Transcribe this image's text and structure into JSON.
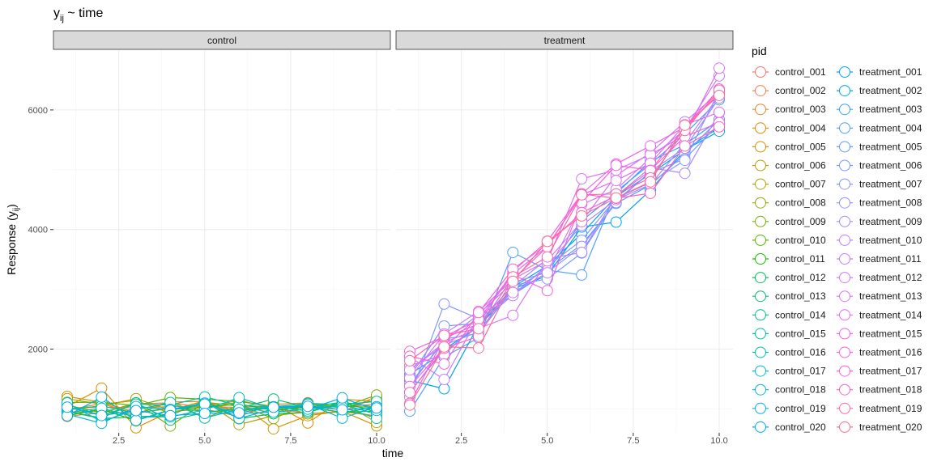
{
  "chart_data": {
    "type": "line",
    "title": "y",
    "title_subscript": "ij",
    "title_suffix": " ~ time",
    "xlabel": "time",
    "ylabel": "Response (y",
    "ylabel_subscript": "ij",
    "ylabel_suffix": ")",
    "xlim": [
      0.6,
      10.4
    ],
    "ylim": [
      600,
      7000
    ],
    "x_ticks": [
      2.5,
      5.0,
      7.5,
      10.0
    ],
    "x_tick_labels": [
      "2.5",
      "5.0",
      "7.5",
      "10.0"
    ],
    "y_ticks": [
      2000,
      4000,
      6000
    ],
    "y_tick_labels": [
      "2000",
      "4000",
      "6000"
    ],
    "grid": true,
    "legend_title": "pid",
    "legend_placement": "right",
    "facets": [
      "control",
      "treatment"
    ],
    "series": [
      {
        "name": "control_001",
        "facet": "control",
        "color": "#F8766D",
        "x": [
          1,
          2,
          3,
          4,
          5,
          6,
          7,
          8,
          9,
          10
        ],
        "y": [
          1008,
          1032,
          1017,
          1038,
          1040,
          1025,
          1051,
          1036,
          1034,
          1081
        ]
      },
      {
        "name": "control_002",
        "facet": "control",
        "color": "#F27D52",
        "x": [
          1,
          2,
          3,
          4,
          5,
          6,
          7,
          8,
          9,
          10
        ],
        "y": [
          875,
          938,
          1087,
          1100,
          1025,
          1146,
          1011,
          923,
          950,
          1211
        ]
      },
      {
        "name": "control_003",
        "facet": "control",
        "color": "#EA8331",
        "x": [
          1,
          2,
          3,
          4,
          5,
          6,
          7,
          8,
          9,
          10
        ],
        "y": [
          980,
          1090,
          917,
          1117,
          1126,
          950,
          1074,
          1104,
          974,
          879
        ]
      },
      {
        "name": "control_004",
        "facet": "control",
        "color": "#DE8C00",
        "x": [
          1,
          2,
          3,
          4,
          5,
          6,
          7,
          8,
          9,
          10
        ],
        "y": [
          1037,
          1348,
          684,
          957,
          997,
          875,
          1084,
          765,
          1163,
          1125
        ]
      },
      {
        "name": "control_005",
        "facet": "control",
        "color": "#D09400",
        "x": [
          1,
          2,
          3,
          4,
          5,
          6,
          7,
          8,
          9,
          10
        ],
        "y": [
          1209,
          1111,
          939,
          1002,
          1051,
          1108,
          666,
          888,
          961,
          717
        ]
      },
      {
        "name": "control_006",
        "facet": "control",
        "color": "#C09B00",
        "x": [
          1,
          2,
          3,
          4,
          5,
          6,
          7,
          8,
          9,
          10
        ],
        "y": [
          1171,
          1078,
          1141,
          928,
          1092,
          952,
          1072,
          918,
          957,
          880
        ]
      },
      {
        "name": "control_007",
        "facet": "control",
        "color": "#AEA200",
        "x": [
          1,
          2,
          3,
          4,
          5,
          6,
          7,
          8,
          9,
          10
        ],
        "y": [
          983,
          1049,
          1172,
          977,
          1136,
          739,
          886,
          953,
          1111,
          774
        ]
      },
      {
        "name": "control_008",
        "facet": "control",
        "color": "#99A800",
        "x": [
          1,
          2,
          3,
          4,
          5,
          6,
          7,
          8,
          9,
          10
        ],
        "y": [
          928,
          973,
          899,
          1138,
          847,
          1063,
          840,
          1077,
          1020,
          1155
        ]
      },
      {
        "name": "control_009",
        "facet": "control",
        "color": "#7CAE00",
        "x": [
          1,
          2,
          3,
          4,
          5,
          6,
          7,
          8,
          9,
          10
        ],
        "y": [
          1064,
          935,
          1098,
          713,
          1113,
          1047,
          930,
          1091,
          1031,
          1232
        ]
      },
      {
        "name": "control_010",
        "facet": "control",
        "color": "#5BB300",
        "x": [
          1,
          2,
          3,
          4,
          5,
          6,
          7,
          8,
          9,
          10
        ],
        "y": [
          1109,
          1113,
          1055,
          1190,
          1162,
          1127,
          1043,
          1008,
          1046,
          1025
        ]
      },
      {
        "name": "control_011",
        "facet": "control",
        "color": "#1EB800",
        "x": [
          1,
          2,
          3,
          4,
          5,
          6,
          7,
          8,
          9,
          10
        ],
        "y": [
          885,
          997,
          801,
          990,
          1026,
          1083,
          972,
          1035,
          942,
          966
        ]
      },
      {
        "name": "control_012",
        "facet": "control",
        "color": "#00BC56",
        "x": [
          1,
          2,
          3,
          4,
          5,
          6,
          7,
          8,
          9,
          10
        ],
        "y": [
          959,
          838,
          868,
          893,
          1136,
          837,
          919,
          941,
          1107,
          949
        ]
      },
      {
        "name": "control_013",
        "facet": "control",
        "color": "#00BE70",
        "x": [
          1,
          2,
          3,
          4,
          5,
          6,
          7,
          8,
          9,
          10
        ],
        "y": [
          953,
          849,
          1101,
          812,
          937,
          1013,
          1166,
          1025,
          1114,
          1029
        ]
      },
      {
        "name": "control_014",
        "facet": "control",
        "color": "#00C087",
        "x": [
          1,
          2,
          3,
          4,
          5,
          6,
          7,
          8,
          9,
          10
        ],
        "y": [
          989,
          1052,
          928,
          1021,
          960,
          971,
          1032,
          1041,
          934,
          1033
        ]
      },
      {
        "name": "control_015",
        "facet": "control",
        "color": "#00C19C",
        "x": [
          1,
          2,
          3,
          4,
          5,
          6,
          7,
          8,
          9,
          10
        ],
        "y": [
          1069,
          890,
          1081,
          1065,
          1201,
          1057,
          1036,
          1092,
          1074,
          1127
        ]
      },
      {
        "name": "control_016",
        "facet": "control",
        "color": "#00C0AF",
        "x": [
          1,
          2,
          3,
          4,
          5,
          6,
          7,
          8,
          9,
          10
        ],
        "y": [
          1101,
          788,
          987,
          1108,
          849,
          993,
          1034,
          967,
          1078,
          908
        ]
      },
      {
        "name": "control_017",
        "facet": "control",
        "color": "#00BDC2",
        "x": [
          1,
          2,
          3,
          4,
          5,
          6,
          7,
          8,
          9,
          10
        ],
        "y": [
          935,
          1011,
          862,
          868,
          984,
          1188,
          1002,
          1050,
          1027,
          844
        ]
      },
      {
        "name": "control_018",
        "facet": "control",
        "color": "#00B8D3",
        "x": [
          1,
          2,
          3,
          4,
          5,
          6,
          7,
          8,
          9,
          10
        ],
        "y": [
          913,
          760,
          1040,
          991,
          1098,
          841,
          1000,
          1079,
          845,
          1036
        ]
      },
      {
        "name": "control_019",
        "facet": "control",
        "color": "#00B2E2",
        "x": [
          1,
          2,
          3,
          4,
          5,
          6,
          7,
          8,
          9,
          10
        ],
        "y": [
          886,
          1198,
          808,
          979,
          1081,
          923,
          945,
          997,
          1185,
          976
        ]
      },
      {
        "name": "control_020",
        "facet": "control",
        "color": "#00A9F0",
        "x": [
          1,
          2,
          3,
          4,
          5,
          6,
          7,
          8,
          9,
          10
        ],
        "y": [
          1029,
          890,
          972,
          888,
          925,
          936,
          1027,
          1044,
          985,
          1015
        ]
      },
      {
        "name": "treatment_001",
        "facet": "treatment",
        "color": "#00A5FF",
        "x": [
          1,
          2,
          3,
          4,
          5,
          6,
          7,
          8,
          9,
          10
        ],
        "y": [
          1280,
          1998,
          2368,
          3037,
          3396,
          3929,
          4555,
          4929,
          5333,
          5706
        ]
      },
      {
        "name": "treatment_002",
        "facet": "treatment",
        "color": "#00A3E8",
        "x": [
          1,
          2,
          3,
          4,
          5,
          6,
          7,
          8,
          9,
          10
        ],
        "y": [
          1478,
          1337,
          2405,
          3004,
          3227,
          4043,
          4125,
          4657,
          5331,
          5645
        ]
      },
      {
        "name": "treatment_003",
        "facet": "treatment",
        "color": "#35A2FF",
        "x": [
          1,
          2,
          3,
          4,
          5,
          6,
          7,
          8,
          9,
          10
        ],
        "y": [
          1581,
          1941,
          2402,
          2912,
          3282,
          4146,
          4604,
          5140,
          5418,
          5837
        ]
      },
      {
        "name": "treatment_004",
        "facet": "treatment",
        "color": "#4FA0FF",
        "x": [
          1,
          2,
          3,
          4,
          5,
          6,
          7,
          8,
          9,
          10
        ],
        "y": [
          962,
          1868,
          2190,
          3617,
          3323,
          3240,
          4636,
          5094,
          5597,
          6170
        ]
      },
      {
        "name": "treatment_005",
        "facet": "treatment",
        "color": "#619CFF",
        "x": [
          1,
          2,
          3,
          4,
          5,
          6,
          7,
          8,
          9,
          10
        ],
        "y": [
          1378,
          2167,
          2261,
          3004,
          3328,
          3750,
          4437,
          4745,
          5266,
          5839
        ]
      },
      {
        "name": "treatment_006",
        "facet": "treatment",
        "color": "#7997FF",
        "x": [
          1,
          2,
          3,
          4,
          5,
          6,
          7,
          8,
          9,
          10
        ],
        "y": [
          1543,
          2386,
          2430,
          3067,
          3175,
          3608,
          4487,
          4947,
          5181,
          5769
        ]
      },
      {
        "name": "treatment_007",
        "facet": "treatment",
        "color": "#8B93FF",
        "x": [
          1,
          2,
          3,
          4,
          5,
          6,
          7,
          8,
          9,
          10
        ],
        "y": [
          1200,
          2754,
          2510,
          2913,
          3386,
          3820,
          4523,
          4786,
          5158,
          6324
        ]
      },
      {
        "name": "treatment_008",
        "facet": "treatment",
        "color": "#9590FF",
        "x": [
          1,
          2,
          3,
          4,
          5,
          6,
          7,
          8,
          9,
          10
        ],
        "y": [
          1420,
          2130,
          2582,
          3115,
          3283,
          3717,
          4451,
          4975,
          5362,
          6201
        ]
      },
      {
        "name": "treatment_009",
        "facet": "treatment",
        "color": "#A58AFF",
        "x": [
          1,
          2,
          3,
          4,
          5,
          6,
          7,
          8,
          9,
          10
        ],
        "y": [
          1661,
          2070,
          2287,
          3049,
          3508,
          3617,
          4559,
          5034,
          4941,
          5952
        ]
      },
      {
        "name": "treatment_010",
        "facet": "treatment",
        "color": "#B983FF",
        "x": [
          1,
          2,
          3,
          4,
          5,
          6,
          7,
          8,
          9,
          10
        ],
        "y": [
          1723,
          1909,
          2459,
          2895,
          3399,
          4071,
          4500,
          4752,
          5441,
          6246
        ]
      },
      {
        "name": "treatment_011",
        "facet": "treatment",
        "color": "#C77CFF",
        "x": [
          1,
          2,
          3,
          4,
          5,
          6,
          7,
          8,
          9,
          10
        ],
        "y": [
          1871,
          1493,
          2542,
          2946,
          3276,
          4418,
          4670,
          5198,
          5671,
          6570
        ]
      },
      {
        "name": "treatment_012",
        "facet": "treatment",
        "color": "#D376FF",
        "x": [
          1,
          2,
          3,
          4,
          5,
          6,
          7,
          8,
          9,
          10
        ],
        "y": [
          1514,
          2254,
          2631,
          3168,
          3480,
          4131,
          4903,
          5283,
          5803,
          6292
        ]
      },
      {
        "name": "treatment_013",
        "facet": "treatment",
        "color": "#DC71FA",
        "x": [
          1,
          2,
          3,
          4,
          5,
          6,
          7,
          8,
          9,
          10
        ],
        "y": [
          1653,
          2109,
          2345,
          2565,
          3476,
          4849,
          4995,
          5251,
          5584,
          6698
        ]
      },
      {
        "name": "treatment_014",
        "facet": "treatment",
        "color": "#E76BF3",
        "x": [
          1,
          2,
          3,
          4,
          5,
          6,
          7,
          8,
          9,
          10
        ],
        "y": [
          1375,
          2024,
          2551,
          3255,
          3722,
          4580,
          4820,
          5108,
          5753,
          5961
        ]
      },
      {
        "name": "treatment_015",
        "facet": "treatment",
        "color": "#F062E8",
        "x": [
          1,
          2,
          3,
          4,
          5,
          6,
          7,
          8,
          9,
          10
        ],
        "y": [
          1093,
          2184,
          2422,
          3305,
          3806,
          4597,
          5096,
          5399,
          5713,
          6350
        ]
      },
      {
        "name": "treatment_016",
        "facet": "treatment",
        "color": "#F763E0",
        "x": [
          1,
          2,
          3,
          4,
          5,
          6,
          7,
          8,
          9,
          10
        ],
        "y": [
          1963,
          2207,
          2495,
          3244,
          2977,
          4449,
          5074,
          4991,
          5556,
          5787
        ]
      },
      {
        "name": "treatment_017",
        "facet": "treatment",
        "color": "#FC61D5",
        "x": [
          1,
          2,
          3,
          4,
          5,
          6,
          7,
          8,
          9,
          10
        ],
        "y": [
          1880,
          1752,
          2612,
          3338,
          3756,
          4284,
          4562,
          4986,
          5709,
          6273
        ]
      },
      {
        "name": "treatment_018",
        "facet": "treatment",
        "color": "#FF62BC",
        "x": [
          1,
          2,
          3,
          4,
          5,
          6,
          7,
          8,
          9,
          10
        ],
        "y": [
          1274,
          2015,
          2213,
          3168,
          3710,
          4594,
          4523,
          4606,
          5398,
          5717
        ]
      },
      {
        "name": "treatment_019",
        "facet": "treatment",
        "color": "#FF65AC",
        "x": [
          1,
          2,
          3,
          4,
          5,
          6,
          7,
          8,
          9,
          10
        ],
        "y": [
          1805,
          2231,
          2342,
          3209,
          3542,
          4581,
          4596,
          4862,
          5656,
          6330
        ]
      },
      {
        "name": "treatment_020",
        "facet": "treatment",
        "color": "#FF6C91",
        "x": [
          1,
          2,
          3,
          4,
          5,
          6,
          7,
          8,
          9,
          10
        ],
        "y": [
          1066,
          2038,
          2019,
          3134,
          3802,
          4227,
          4529,
          4798,
          5745,
          6244
        ]
      }
    ]
  }
}
